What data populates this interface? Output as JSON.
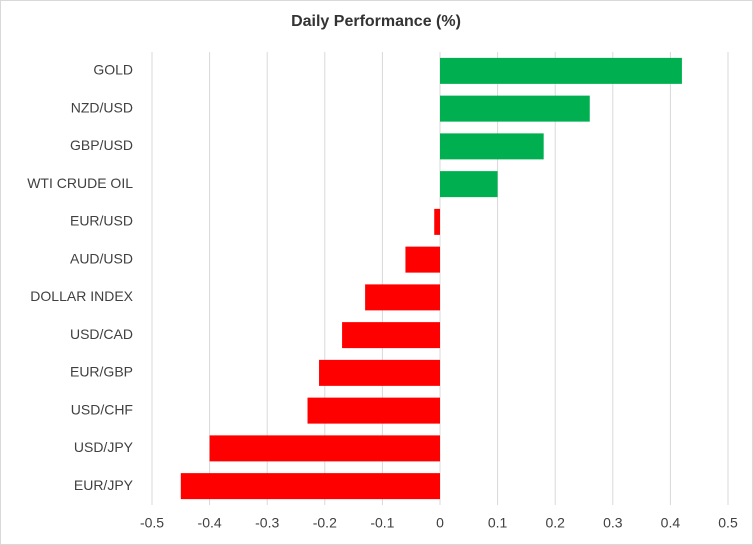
{
  "chart_data": {
    "type": "hbar",
    "title": "Daily Performance (%)",
    "categories": [
      "GOLD",
      "NZD/USD",
      "GBP/USD",
      "WTI CRUDE OIL",
      "EUR/USD",
      "AUD/USD",
      "DOLLAR INDEX",
      "USD/CAD",
      "EUR/GBP",
      "USD/CHF",
      "USD/JPY",
      "EUR/JPY"
    ],
    "values": [
      0.42,
      0.26,
      0.18,
      0.1,
      -0.01,
      -0.06,
      -0.13,
      -0.17,
      -0.21,
      -0.23,
      -0.4,
      -0.45
    ],
    "positive_color": "#00b050",
    "negative_color": "#ff0000",
    "xlim": [
      -0.5,
      0.5
    ],
    "xticks": [
      -0.5,
      -0.4,
      -0.3,
      -0.2,
      -0.1,
      0,
      0.1,
      0.2,
      0.3,
      0.4,
      0.5
    ],
    "grid": true
  }
}
